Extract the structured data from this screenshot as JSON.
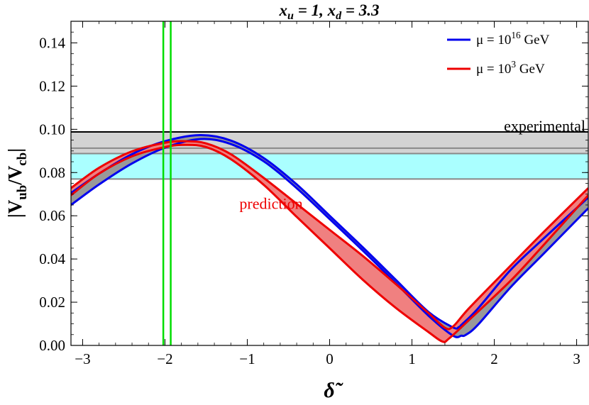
{
  "chart_data": {
    "type": "line",
    "title": "x_u = 1,  x_d = 3.3",
    "xlabel": "δ̃",
    "ylabel": "|V_ub/V_cb|",
    "xlim": [
      -3.14159,
      3.14159
    ],
    "ylim": [
      0,
      0.15
    ],
    "xticks": [
      -3,
      -2,
      -1,
      0,
      1,
      2,
      3
    ],
    "yticks": [
      0.0,
      0.02,
      0.04,
      0.06,
      0.08,
      0.1,
      0.12,
      0.14
    ],
    "ytick_labels": [
      "0.00",
      "0.02",
      "0.04",
      "0.06",
      "0.08",
      "0.10",
      "0.12",
      "0.14"
    ],
    "grid": false,
    "legend_position": "top-right",
    "series": [
      {
        "name": "μ = 10^16 GeV",
        "color": "#0000ee",
        "fill": "#999999",
        "upper": {
          "x": [
            -3.14159,
            -2.8,
            -2.4,
            -2.0,
            -1.57,
            -1.2,
            -0.8,
            -0.4,
            0.0,
            0.4,
            0.8,
            1.2,
            1.5,
            1.57,
            1.6,
            1.8,
            2.2,
            2.6,
            3.14159
          ],
          "y": [
            0.0705,
            0.0795,
            0.0885,
            0.0945,
            0.0973,
            0.0948,
            0.0867,
            0.0745,
            0.06,
            0.0455,
            0.0305,
            0.0155,
            0.0083,
            0.0085,
            0.0095,
            0.017,
            0.035,
            0.0495,
            0.0685
          ]
        },
        "lower": {
          "x": [
            -3.14159,
            -2.8,
            -2.4,
            -2.0,
            -1.57,
            -1.2,
            -0.8,
            -0.4,
            0.0,
            0.4,
            0.8,
            1.2,
            1.5,
            1.6,
            1.65,
            1.8,
            2.2,
            2.6,
            3.14159
          ],
          "y": [
            0.065,
            0.0745,
            0.0842,
            0.0915,
            0.0955,
            0.0932,
            0.0852,
            0.0728,
            0.0585,
            0.044,
            0.029,
            0.0138,
            0.0045,
            0.0045,
            0.0048,
            0.0095,
            0.027,
            0.0425,
            0.0635
          ]
        }
      },
      {
        "name": "μ = 10^3 GeV",
        "color": "#ee0000",
        "fill": "#f08080",
        "upper": {
          "x": [
            -3.14159,
            -2.8,
            -2.4,
            -2.0,
            -1.75,
            -1.5,
            -1.2,
            -0.8,
            -0.4,
            0.0,
            0.4,
            0.8,
            1.2,
            1.4,
            1.5,
            1.7,
            2.2,
            2.6,
            3.14159
          ],
          "y": [
            0.0728,
            0.0822,
            0.0898,
            0.0938,
            0.0945,
            0.0935,
            0.0885,
            0.0775,
            0.0655,
            0.0535,
            0.0415,
            0.0285,
            0.015,
            0.0082,
            0.0088,
            0.0175,
            0.037,
            0.0525,
            0.0728
          ]
        },
        "lower": {
          "x": [
            -3.14159,
            -2.8,
            -2.4,
            -2.0,
            -1.75,
            -1.5,
            -1.2,
            -0.8,
            -0.4,
            0.0,
            0.4,
            0.8,
            1.2,
            1.37,
            1.45,
            1.7,
            2.2,
            2.6,
            3.14159
          ],
          "y": [
            0.0695,
            0.0795,
            0.0875,
            0.0918,
            0.0928,
            0.0918,
            0.0862,
            0.0743,
            0.0595,
            0.045,
            0.0305,
            0.0175,
            0.0062,
            0.0018,
            0.0032,
            0.012,
            0.03,
            0.0465,
            0.0695
          ]
        }
      }
    ],
    "horizontal_bands": [
      {
        "label": "experimental",
        "ymin": 0.0888,
        "ymax": 0.0988,
        "fill": "#d3d3d3",
        "edge": "#000000",
        "mid": 0.0913,
        "mid_color": "#888888"
      },
      {
        "ymin": 0.077,
        "ymax": 0.0888,
        "fill": "#aaffff",
        "edge": "#888888"
      }
    ],
    "vertical_lines": [
      {
        "x": -2.02,
        "color": "#00dd00"
      },
      {
        "x": -1.93,
        "color": "#00dd00"
      }
    ],
    "annotations": [
      {
        "text": "experimental",
        "x": 3.14,
        "y": 0.1015,
        "color": "#000000"
      },
      {
        "text": "prediction",
        "x": -0.5,
        "y": 0.0655,
        "color": "#ee0000"
      }
    ],
    "legend": [
      {
        "label": "μ = 10^16 GeV",
        "color": "#0000ee"
      },
      {
        "label": "μ = 10^3 GeV",
        "color": "#ee0000"
      }
    ]
  }
}
